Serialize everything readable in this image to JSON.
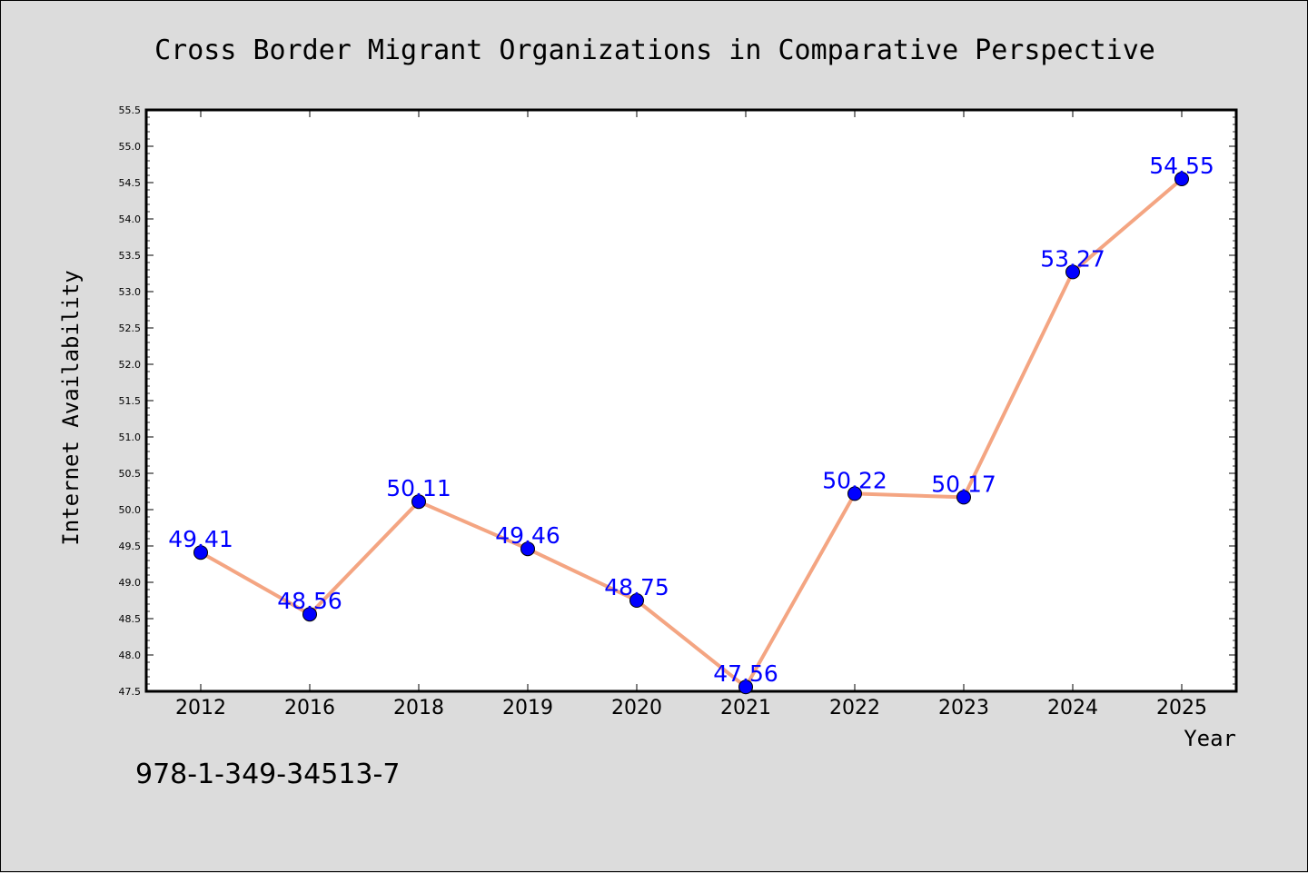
{
  "footer": {
    "isbn": "978-1-349-34513-7"
  },
  "colors": {
    "background": "#dcdcdc",
    "plot_background": "#ffffff",
    "line": "#f4a582",
    "marker": "#0000ff",
    "data_label": "#0000ff"
  },
  "chart_data": {
    "type": "line",
    "title": "Cross Border Migrant Organizations in Comparative Perspective",
    "xlabel": "Year",
    "ylabel": "Internet Availability",
    "categories": [
      "2012",
      "2016",
      "2018",
      "2019",
      "2020",
      "2021",
      "2022",
      "2023",
      "2024",
      "2025"
    ],
    "series": [
      {
        "values": [
          49.41,
          48.56,
          50.11,
          49.46,
          48.75,
          47.56,
          50.22,
          50.17,
          53.27,
          54.55
        ],
        "data_labels": [
          "49.41",
          "48.56",
          "50.11",
          "49.46",
          "48.75",
          "47.56",
          "50.22",
          "50.17",
          "53.27",
          "54.55"
        ]
      }
    ],
    "ylim": [
      47.5,
      55.5
    ],
    "yticks": [
      "47.5",
      "48.0",
      "48.5",
      "49.0",
      "49.5",
      "50.0",
      "50.5",
      "51.0",
      "51.5",
      "52.0",
      "52.5",
      "53.0",
      "53.5",
      "54.0",
      "54.5",
      "55.0",
      "55.5"
    ],
    "grid": false,
    "legend": "none",
    "markers": true
  }
}
